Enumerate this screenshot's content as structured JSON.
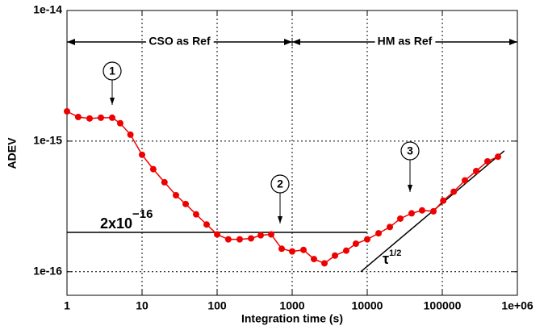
{
  "chart_data": {
    "type": "scatter",
    "xlabel": "Integration time (s)",
    "ylabel": "ADEV",
    "log_x": true,
    "log_y": true,
    "grid": true,
    "xlim": [
      1,
      1000000
    ],
    "ylim": [
      6.6e-17,
      1e-14
    ],
    "xticks": [
      1,
      10,
      100,
      1000,
      10000,
      100000,
      {
        "value": 1000000,
        "label": "1e+06"
      }
    ],
    "yticks": [
      {
        "value": 1e-16,
        "label": "1e-16"
      },
      {
        "value": 1e-15,
        "label": "1e-15"
      },
      {
        "value": 1e-14,
        "label": "1e-14"
      }
    ],
    "series": [
      {
        "color": "#ee0000",
        "x": [
          1,
          1.41,
          2,
          2.83,
          4,
          5.12,
          7,
          10,
          14.1,
          19.9,
          28.3,
          38.1,
          52.5,
          72.5,
          100,
          141,
          200,
          283,
          381,
          525,
          725,
          1000,
          1415,
          1950,
          2690,
          3715,
          5250,
          7060,
          10000,
          14150,
          20000,
          27600,
          39000,
          53800,
          76200,
          103000,
          142000,
          200000,
          283000,
          400000,
          552000
        ],
        "values": [
          1.69e-15,
          1.53e-15,
          1.49e-15,
          1.51e-15,
          1.51e-15,
          1.37e-15,
          1.12e-15,
          7.86e-16,
          6.1e-16,
          4.84e-16,
          3.85e-16,
          3.3e-16,
          2.75e-16,
          2.3e-16,
          1.93e-16,
          1.77e-16,
          1.77e-16,
          1.8e-16,
          1.9e-16,
          1.93e-16,
          1.5e-16,
          1.43e-16,
          1.47e-16,
          1.25e-16,
          1.16e-16,
          1.33e-16,
          1.45e-16,
          1.64e-16,
          1.77e-16,
          1.97e-16,
          2.2e-16,
          2.55e-16,
          2.8e-16,
          2.95e-16,
          2.9e-16,
          3.5e-16,
          4.1e-16,
          5e-16,
          5.9e-16,
          7e-16,
          7.6e-16
        ]
      }
    ],
    "ref_line": {
      "value": 2e-16,
      "x": [
        1,
        10000
      ],
      "label": "2x10",
      "exponent": "−16"
    },
    "slope_line": {
      "x": [
        8200,
        670000
      ],
      "values": [
        1e-16,
        8.43e-16
      ],
      "label": "τ",
      "exponent": "1/2"
    },
    "regions": [
      {
        "label": "CSO as Ref",
        "x": [
          1,
          1000
        ]
      },
      {
        "label": "HM as Ref",
        "x": [
          1000,
          1000000
        ]
      }
    ],
    "markers": [
      "1",
      "2",
      "3"
    ]
  }
}
